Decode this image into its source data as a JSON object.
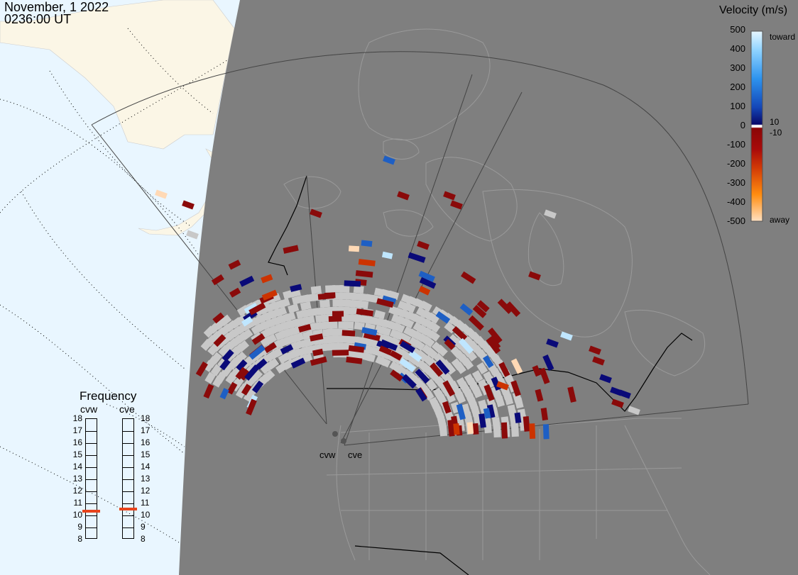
{
  "header": {
    "date": "November, 1 2022",
    "time": "0236:00 UT"
  },
  "colorbar": {
    "title": "Velocity (m/s)",
    "ticks": [
      "500",
      "400",
      "300",
      "200",
      "100",
      "0",
      "-100",
      "-200",
      "-300",
      "-400",
      "-500"
    ],
    "toward_label": "toward",
    "away_label": "away",
    "gate_pos_label": "10",
    "gate_neg_label": "-10"
  },
  "frequency_panel": {
    "title": "Frequency",
    "stations": [
      "cvw",
      "cve"
    ],
    "scale": [
      "18",
      "17",
      "16",
      "15",
      "14",
      "13",
      "12",
      "11",
      "10",
      "9",
      "8"
    ],
    "cvw_freq_mhz": 10.3,
    "cve_freq_mhz": 10.5
  },
  "radars": [
    {
      "code": "cvw",
      "name_label": "cvw"
    },
    {
      "code": "cve",
      "name_label": "cve"
    }
  ],
  "colors": {
    "ocean": "#e9f6ff",
    "land_outside": "#fbf6e6",
    "night_region": "#7f7f7f",
    "ground_scatter": "#c8c8c8",
    "toward": [
      "#0a0a78",
      "#1e5fc4",
      "#3aa0f0",
      "#bfe6ff"
    ],
    "away": [
      "#8a0a0a",
      "#cc3300",
      "#ff8a00",
      "#ffd9b5"
    ]
  }
}
